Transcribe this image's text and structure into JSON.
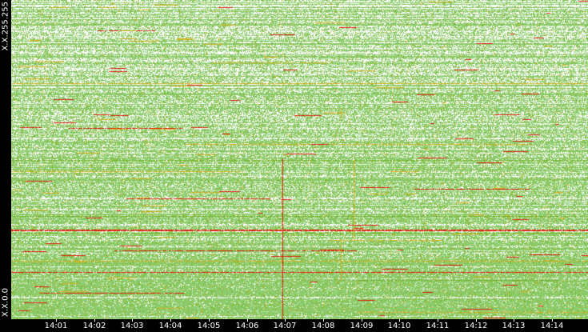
{
  "y_axis": {
    "top_label": "X.X.255.255",
    "bottom_label": "X.X.0.0"
  },
  "x_axis": {
    "ticks": [
      "14:01",
      "14:02",
      "14:03",
      "14:04",
      "14:05",
      "14:06",
      "14:07",
      "14:08",
      "14:09",
      "14:10",
      "14:11",
      "14:12",
      "14:13",
      "14:14"
    ]
  },
  "colors": {
    "background": "#ffffff",
    "low": "#8ccc6e",
    "mid": "#7ab52a",
    "warm": "#d4b020",
    "high": "#e02010",
    "axis_bg": "#000000",
    "axis_text": "#ffffff"
  }
}
